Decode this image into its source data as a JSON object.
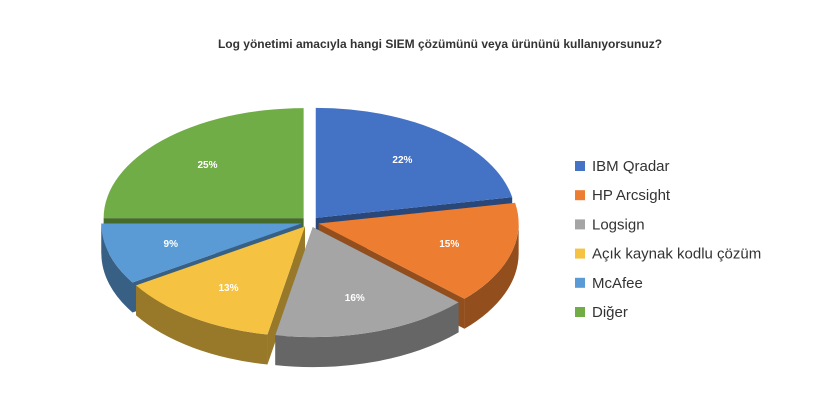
{
  "chart_data": {
    "type": "pie3d",
    "title": "Log yönetimi amacıyla hangi SIEM çözümünü veya ürününü kullanıyorsunuz?",
    "categories": [
      "IBM Qradar",
      "HP Arcsight",
      "Logsign",
      "Açık kaynak kodlu çözüm",
      "McAfee",
      "Diğer"
    ],
    "values": [
      22,
      15,
      16,
      13,
      9,
      25
    ],
    "value_labels": [
      "22%",
      "15%",
      "16%",
      "13%",
      "9%",
      "25%"
    ],
    "colors": [
      "#4472c4",
      "#ed7d31",
      "#a5a5a5",
      "#f5c242",
      "#5b9bd5",
      "#70ad47"
    ],
    "legend": "right"
  }
}
